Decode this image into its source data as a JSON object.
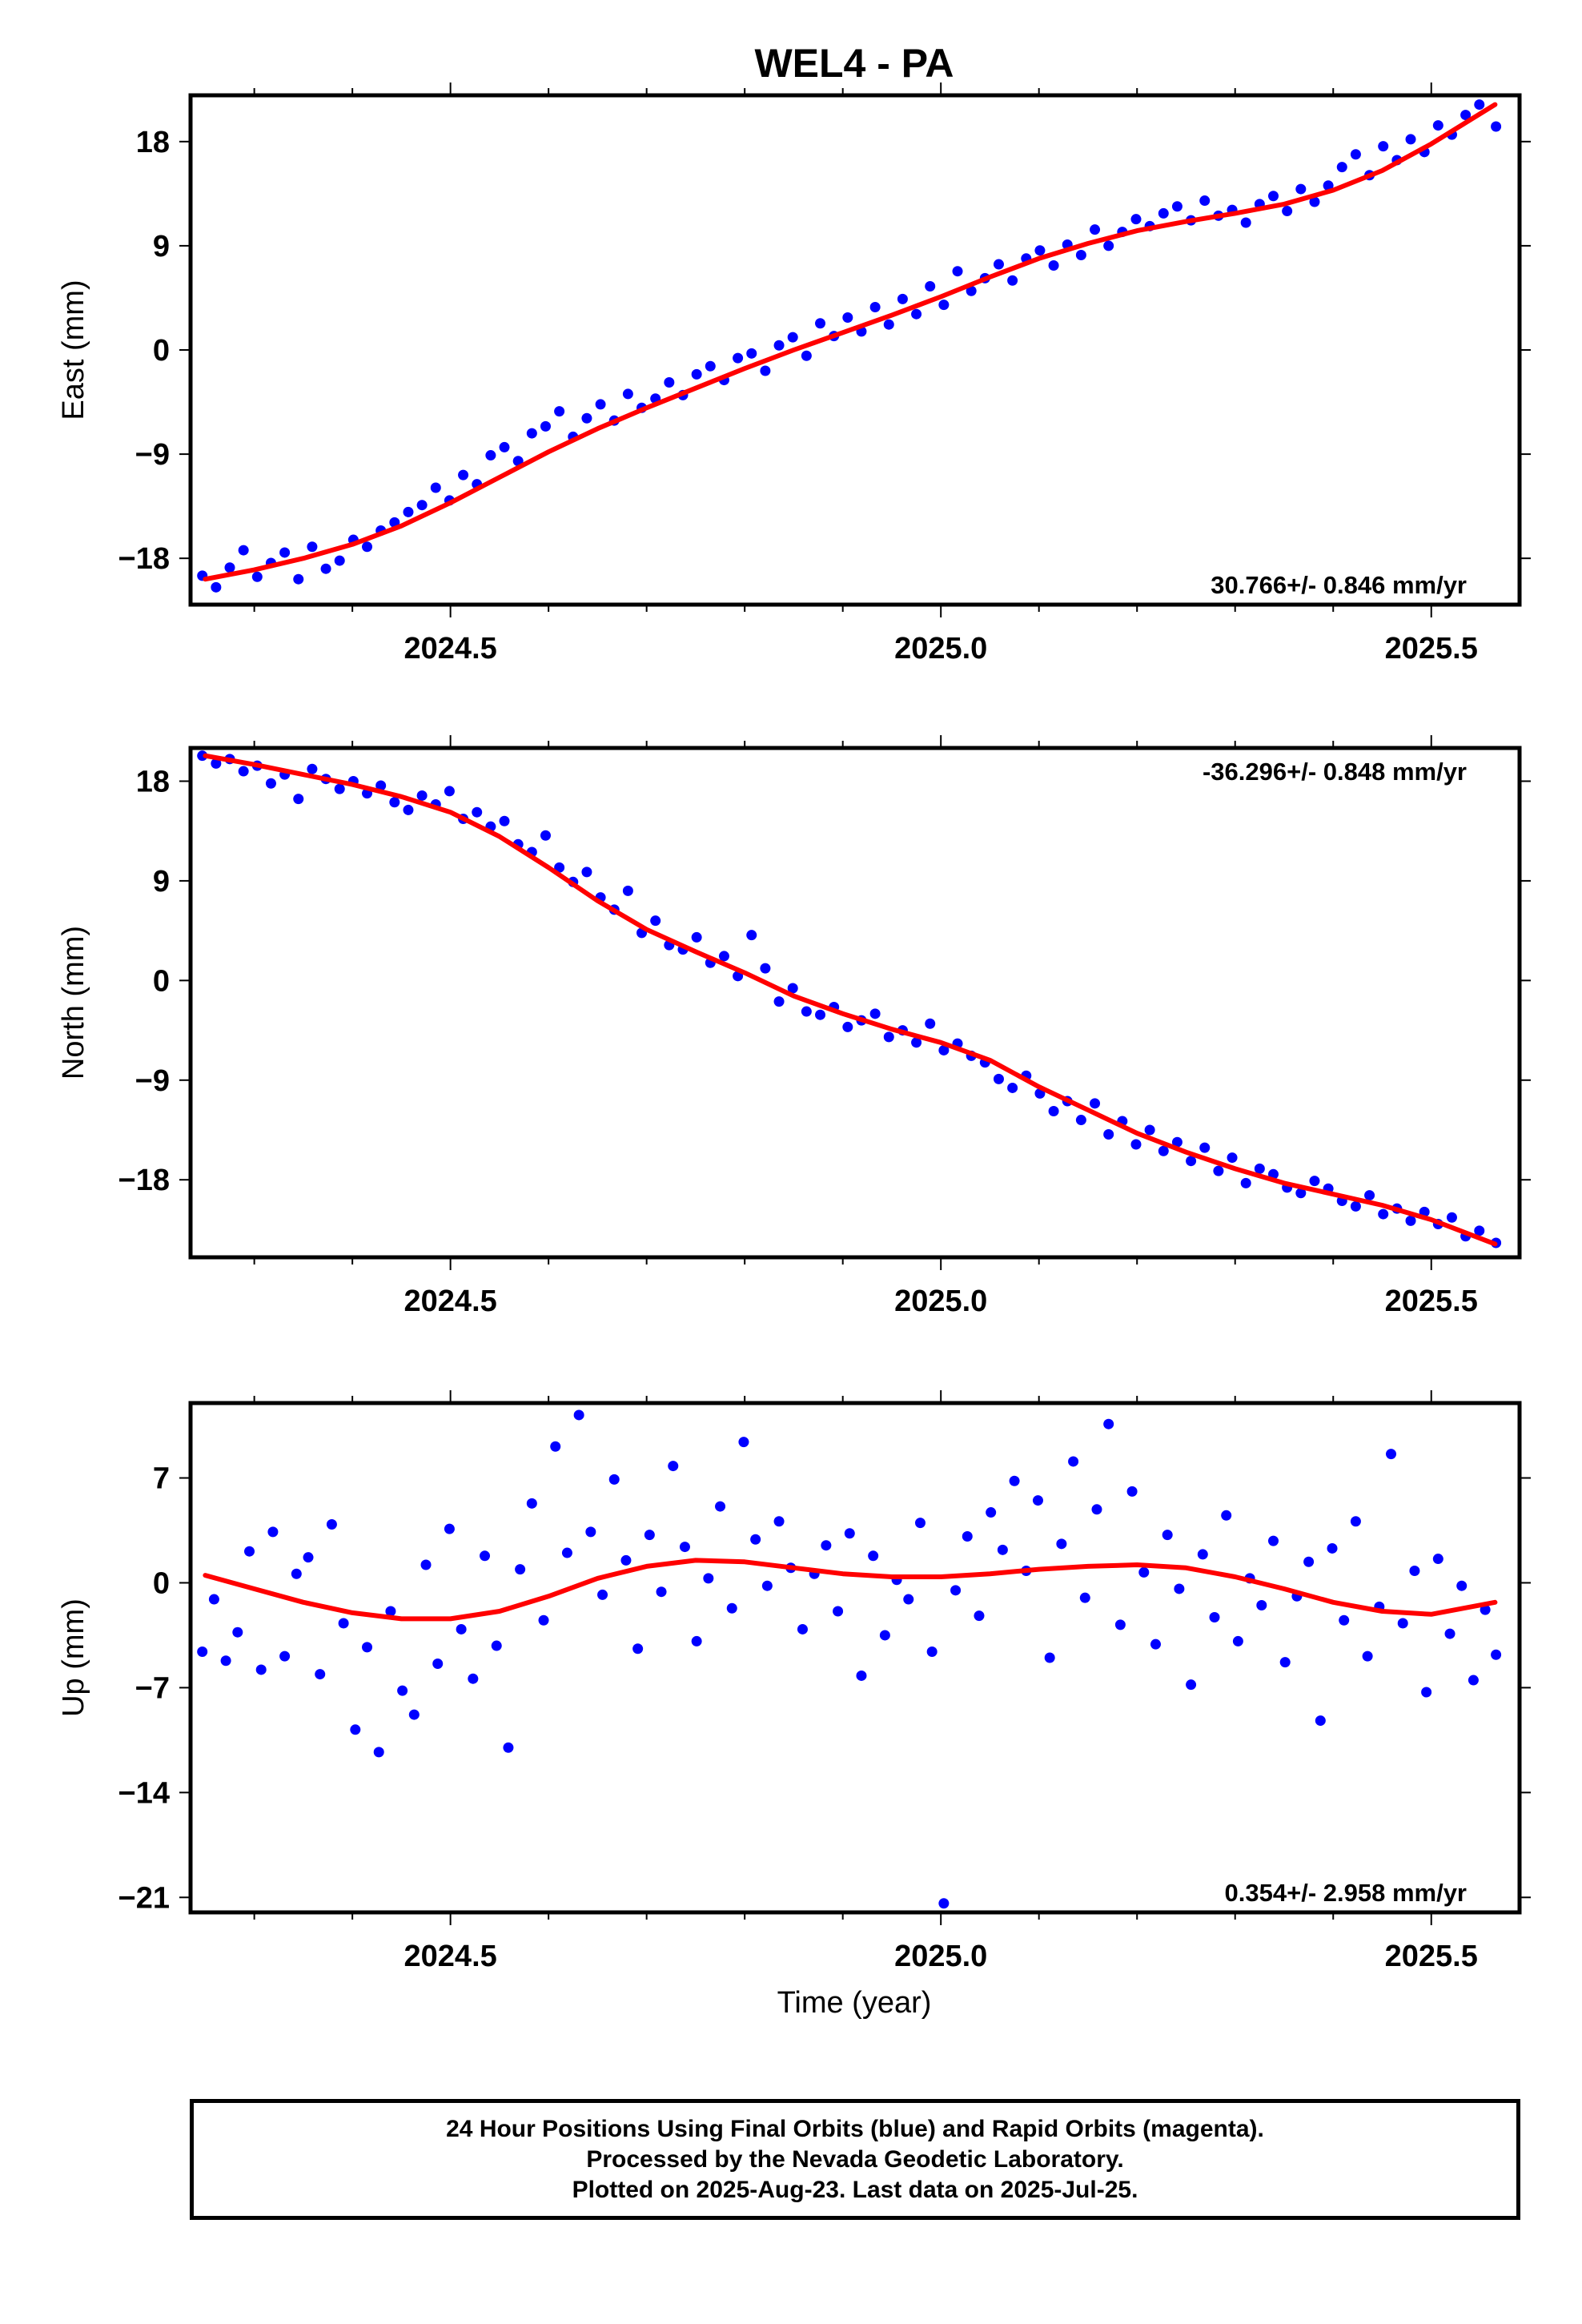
{
  "title": "WEL4 - PA",
  "xlabel": "Time (year)",
  "colors": {
    "points": "#0000ff",
    "fit": "#ff0000",
    "frame": "#000000"
  },
  "footer": {
    "line1": "24 Hour Positions Using Final Orbits (blue) and Rapid Orbits (magenta).",
    "line2": "Processed by the Nevada Geodetic Laboratory.",
    "line3": "Plotted on 2025-Aug-23. Last data on 2025-Jul-25."
  },
  "chart_data": [
    {
      "type": "scatter",
      "key": "east",
      "ylabel": "East (mm)",
      "rate_label": "30.766+/- 0.846 mm/yr",
      "rate_position": "bottom-right",
      "xlim": [
        2024.235,
        2025.59
      ],
      "ylim": [
        -22,
        22
      ],
      "xticks": [
        2024.5,
        2025.0,
        2025.5
      ],
      "xtick_labels": [
        "2024.5",
        "2025.0",
        "2025.5"
      ],
      "xminor": [
        2024.3,
        2024.4,
        2024.6,
        2024.7,
        2024.8,
        2024.9,
        2025.1,
        2025.2,
        2025.3,
        2025.4
      ],
      "yticks": [
        -18,
        -9,
        0,
        9,
        18
      ],
      "ytick_labels": [
        "−18",
        "−9",
        "0",
        "9",
        "18"
      ],
      "fit": {
        "x": [
          2024.25,
          2024.3,
          2024.35,
          2024.4,
          2024.45,
          2024.5,
          2024.55,
          2024.6,
          2024.65,
          2024.7,
          2024.75,
          2024.8,
          2024.85,
          2024.9,
          2024.95,
          2025.0,
          2025.05,
          2025.1,
          2025.15,
          2025.2,
          2025.25,
          2025.3,
          2025.35,
          2025.4,
          2025.45,
          2025.5,
          2025.565
        ],
        "y": [
          -19.8,
          -19.0,
          -18.0,
          -16.8,
          -15.2,
          -13.2,
          -11.0,
          -8.8,
          -6.8,
          -5.0,
          -3.3,
          -1.6,
          0.0,
          1.5,
          3.0,
          4.6,
          6.3,
          7.9,
          9.2,
          10.3,
          11.1,
          11.8,
          12.6,
          13.8,
          15.5,
          17.8,
          21.2
        ]
      },
      "points": {
        "x": [
          2024.247,
          2024.261,
          2024.275,
          2024.289,
          2024.303,
          2024.317,
          2024.331,
          2024.345,
          2024.359,
          2024.373,
          2024.387,
          2024.401,
          2024.415,
          2024.429,
          2024.443,
          2024.457,
          2024.471,
          2024.485,
          2024.499,
          2024.513,
          2024.527,
          2024.541,
          2024.555,
          2024.569,
          2024.583,
          2024.597,
          2024.611,
          2024.625,
          2024.639,
          2024.653,
          2024.667,
          2024.681,
          2024.695,
          2024.709,
          2024.723,
          2024.737,
          2024.751,
          2024.765,
          2024.779,
          2024.793,
          2024.807,
          2024.821,
          2024.835,
          2024.849,
          2024.863,
          2024.877,
          2024.891,
          2024.905,
          2024.919,
          2024.933,
          2024.947,
          2024.961,
          2024.975,
          2024.989,
          2025.003,
          2025.017,
          2025.031,
          2025.045,
          2025.059,
          2025.073,
          2025.087,
          2025.101,
          2025.115,
          2025.129,
          2025.143,
          2025.157,
          2025.171,
          2025.185,
          2025.199,
          2025.213,
          2025.227,
          2025.241,
          2025.255,
          2025.269,
          2025.283,
          2025.297,
          2025.311,
          2025.325,
          2025.339,
          2025.353,
          2025.367,
          2025.381,
          2025.395,
          2025.409,
          2025.423,
          2025.437,
          2025.451,
          2025.465,
          2025.479,
          2025.493,
          2025.507,
          2025.521,
          2025.535,
          2025.549,
          2025.566
        ],
        "y": [
          -19.5,
          -20.5,
          -18.8,
          -17.3,
          -19.6,
          -18.4,
          -17.5,
          -19.8,
          -17.0,
          -18.9,
          -18.2,
          -16.4,
          -17.0,
          -15.6,
          -14.9,
          -14.0,
          -13.4,
          -11.9,
          -13.0,
          -10.8,
          -11.6,
          -9.1,
          -8.4,
          -9.6,
          -7.2,
          -6.6,
          -5.3,
          -7.5,
          -5.9,
          -4.7,
          -6.1,
          -3.8,
          -5.0,
          -4.2,
          -2.8,
          -3.9,
          -2.1,
          -1.4,
          -2.6,
          -0.7,
          -0.3,
          -1.8,
          0.4,
          1.1,
          -0.5,
          2.3,
          1.2,
          2.8,
          1.6,
          3.7,
          2.2,
          4.4,
          3.1,
          5.5,
          3.9,
          6.8,
          5.1,
          6.2,
          7.4,
          6.0,
          7.9,
          8.6,
          7.3,
          9.1,
          8.2,
          10.4,
          9.0,
          10.2,
          11.3,
          10.7,
          11.8,
          12.4,
          11.2,
          12.9,
          11.6,
          12.1,
          11.0,
          12.6,
          13.3,
          12.0,
          13.9,
          12.8,
          14.2,
          15.8,
          16.9,
          15.1,
          17.6,
          16.4,
          18.2,
          17.1,
          19.4,
          18.6,
          20.3,
          21.2,
          19.3
        ]
      }
    },
    {
      "type": "scatter",
      "key": "north",
      "ylabel": "North (mm)",
      "rate_label": "-36.296+/- 0.848 mm/yr",
      "rate_position": "top-right",
      "xlim": [
        2024.235,
        2025.59
      ],
      "ylim": [
        -25,
        21
      ],
      "xticks": [
        2024.5,
        2025.0,
        2025.5
      ],
      "xtick_labels": [
        "2024.5",
        "2025.0",
        "2025.5"
      ],
      "xminor": [
        2024.3,
        2024.4,
        2024.6,
        2024.7,
        2024.8,
        2024.9,
        2025.1,
        2025.2,
        2025.3,
        2025.4
      ],
      "yticks": [
        -18,
        -9,
        0,
        9,
        18
      ],
      "ytick_labels": [
        "−18",
        "−9",
        "0",
        "9",
        "18"
      ],
      "fit": {
        "x": [
          2024.25,
          2024.3,
          2024.35,
          2024.4,
          2024.45,
          2024.5,
          2024.55,
          2024.6,
          2024.65,
          2024.7,
          2024.75,
          2024.8,
          2024.85,
          2024.9,
          2024.95,
          2025.0,
          2025.05,
          2025.1,
          2025.15,
          2025.2,
          2025.25,
          2025.3,
          2025.35,
          2025.4,
          2025.45,
          2025.5,
          2025.565
        ],
        "y": [
          20.3,
          19.5,
          18.6,
          17.7,
          16.6,
          15.2,
          13.0,
          10.2,
          7.2,
          4.6,
          2.6,
          0.7,
          -1.4,
          -3.0,
          -4.4,
          -5.6,
          -7.2,
          -9.6,
          -11.7,
          -13.8,
          -15.5,
          -17.0,
          -18.3,
          -19.3,
          -20.3,
          -21.6,
          -23.8
        ]
      },
      "points": {
        "x": [
          2024.247,
          2024.261,
          2024.275,
          2024.289,
          2024.303,
          2024.317,
          2024.331,
          2024.345,
          2024.359,
          2024.373,
          2024.387,
          2024.401,
          2024.415,
          2024.429,
          2024.443,
          2024.457,
          2024.471,
          2024.485,
          2024.499,
          2024.513,
          2024.527,
          2024.541,
          2024.555,
          2024.569,
          2024.583,
          2024.597,
          2024.611,
          2024.625,
          2024.639,
          2024.653,
          2024.667,
          2024.681,
          2024.695,
          2024.709,
          2024.723,
          2024.737,
          2024.751,
          2024.765,
          2024.779,
          2024.793,
          2024.807,
          2024.821,
          2024.835,
          2024.849,
          2024.863,
          2024.877,
          2024.891,
          2024.905,
          2024.919,
          2024.933,
          2024.947,
          2024.961,
          2024.975,
          2024.989,
          2025.003,
          2025.017,
          2025.031,
          2025.045,
          2025.059,
          2025.073,
          2025.087,
          2025.101,
          2025.115,
          2025.129,
          2025.143,
          2025.157,
          2025.171,
          2025.185,
          2025.199,
          2025.213,
          2025.227,
          2025.241,
          2025.255,
          2025.269,
          2025.283,
          2025.297,
          2025.311,
          2025.325,
          2025.339,
          2025.353,
          2025.367,
          2025.381,
          2025.395,
          2025.409,
          2025.423,
          2025.437,
          2025.451,
          2025.465,
          2025.479,
          2025.493,
          2025.507,
          2025.521,
          2025.535,
          2025.549,
          2025.566
        ],
        "y": [
          20.3,
          19.6,
          20.0,
          18.9,
          19.4,
          17.8,
          18.6,
          16.4,
          19.1,
          18.2,
          17.3,
          18.0,
          16.9,
          17.6,
          16.1,
          15.4,
          16.7,
          15.9,
          17.1,
          14.6,
          15.2,
          13.9,
          14.4,
          12.3,
          11.6,
          13.1,
          10.2,
          8.9,
          9.8,
          7.5,
          6.4,
          8.1,
          4.3,
          5.4,
          3.2,
          2.8,
          3.9,
          1.6,
          2.2,
          0.4,
          4.1,
          1.1,
          -1.9,
          -0.7,
          -2.8,
          -3.1,
          -2.4,
          -4.2,
          -3.6,
          -3.0,
          -5.1,
          -4.5,
          -5.6,
          -3.9,
          -6.3,
          -5.7,
          -6.8,
          -7.4,
          -8.9,
          -9.7,
          -8.6,
          -10.2,
          -11.8,
          -10.9,
          -12.6,
          -11.1,
          -13.9,
          -12.7,
          -14.8,
          -13.5,
          -15.4,
          -14.6,
          -16.3,
          -15.1,
          -17.2,
          -16.0,
          -18.3,
          -17.0,
          -17.5,
          -18.7,
          -19.2,
          -18.1,
          -18.8,
          -19.9,
          -20.4,
          -19.4,
          -21.1,
          -20.6,
          -21.7,
          -20.9,
          -22.0,
          -21.4,
          -23.1,
          -22.6,
          -23.7
        ]
      }
    },
    {
      "type": "scatter",
      "key": "up",
      "ylabel": "Up (mm)",
      "rate_label": "0.354+/- 2.958 mm/yr",
      "rate_position": "bottom-right",
      "xlim": [
        2024.235,
        2025.59
      ],
      "ylim": [
        -22,
        12
      ],
      "xticks": [
        2024.5,
        2025.0,
        2025.5
      ],
      "xtick_labels": [
        "2024.5",
        "2025.0",
        "2025.5"
      ],
      "xminor": [
        2024.3,
        2024.4,
        2024.6,
        2024.7,
        2024.8,
        2024.9,
        2025.1,
        2025.2,
        2025.3,
        2025.4
      ],
      "yticks": [
        -21,
        -14,
        -7,
        0,
        7
      ],
      "ytick_labels": [
        "−21",
        "−14",
        "−7",
        "0",
        "7"
      ],
      "fit": {
        "x": [
          2024.25,
          2024.3,
          2024.35,
          2024.4,
          2024.45,
          2024.5,
          2024.55,
          2024.6,
          2024.65,
          2024.7,
          2024.75,
          2024.8,
          2024.85,
          2024.9,
          2024.95,
          2025.0,
          2025.05,
          2025.1,
          2025.15,
          2025.2,
          2025.25,
          2025.3,
          2025.35,
          2025.4,
          2025.45,
          2025.5,
          2025.565
        ],
        "y": [
          0.5,
          -0.4,
          -1.3,
          -2.0,
          -2.4,
          -2.4,
          -1.9,
          -0.9,
          0.3,
          1.1,
          1.5,
          1.4,
          1.0,
          0.6,
          0.4,
          0.4,
          0.6,
          0.9,
          1.1,
          1.2,
          1.0,
          0.4,
          -0.4,
          -1.3,
          -1.9,
          -2.1,
          -1.3
        ]
      },
      "points": {
        "x": [
          2024.247,
          2024.259,
          2024.271,
          2024.283,
          2024.295,
          2024.307,
          2024.319,
          2024.331,
          2024.343,
          2024.355,
          2024.367,
          2024.379,
          2024.391,
          2024.403,
          2024.415,
          2024.427,
          2024.439,
          2024.451,
          2024.463,
          2024.475,
          2024.487,
          2024.499,
          2024.511,
          2024.523,
          2024.535,
          2024.547,
          2024.559,
          2024.571,
          2024.583,
          2024.595,
          2024.607,
          2024.619,
          2024.631,
          2024.643,
          2024.655,
          2024.667,
          2024.679,
          2024.691,
          2024.703,
          2024.715,
          2024.727,
          2024.739,
          2024.751,
          2024.763,
          2024.775,
          2024.787,
          2024.799,
          2024.811,
          2024.823,
          2024.835,
          2024.847,
          2024.859,
          2024.871,
          2024.883,
          2024.895,
          2024.907,
          2024.919,
          2024.931,
          2024.943,
          2024.955,
          2024.967,
          2024.979,
          2024.991,
          2025.003,
          2025.015,
          2025.027,
          2025.039,
          2025.051,
          2025.063,
          2025.075,
          2025.087,
          2025.099,
          2025.111,
          2025.123,
          2025.135,
          2025.147,
          2025.159,
          2025.171,
          2025.183,
          2025.195,
          2025.207,
          2025.219,
          2025.231,
          2025.243,
          2025.255,
          2025.267,
          2025.279,
          2025.291,
          2025.303,
          2025.315,
          2025.327,
          2025.339,
          2025.351,
          2025.363,
          2025.375,
          2025.387,
          2025.399,
          2025.411,
          2025.423,
          2025.435,
          2025.447,
          2025.459,
          2025.471,
          2025.483,
          2025.495,
          2025.507,
          2025.519,
          2025.531,
          2025.543,
          2025.555,
          2025.566
        ],
        "y": [
          -4.6,
          -1.1,
          -5.2,
          -3.3,
          2.1,
          -5.8,
          3.4,
          -4.9,
          0.6,
          1.7,
          -6.1,
          3.9,
          -2.7,
          -9.8,
          -4.3,
          -11.3,
          -1.9,
          -7.2,
          -8.8,
          1.2,
          -5.4,
          3.6,
          -3.1,
          -6.4,
          1.8,
          -4.2,
          -11.0,
          0.9,
          5.3,
          -2.5,
          9.1,
          2.0,
          11.2,
          3.4,
          -0.8,
          6.9,
          1.5,
          -4.4,
          3.2,
          -0.6,
          7.8,
          2.4,
          -3.9,
          0.3,
          5.1,
          -1.7,
          9.4,
          2.9,
          -0.2,
          4.1,
          1.0,
          -3.1,
          0.6,
          2.5,
          -1.9,
          3.3,
          -6.2,
          1.8,
          -3.5,
          0.2,
          -1.1,
          4.0,
          -4.6,
          -21.4,
          -0.5,
          3.1,
          -2.2,
          4.7,
          2.2,
          6.8,
          0.8,
          5.5,
          -5.0,
          2.6,
          8.1,
          -1.0,
          4.9,
          10.6,
          -2.8,
          6.1,
          0.7,
          -4.1,
          3.2,
          -0.4,
          -6.8,
          1.9,
          -2.3,
          4.5,
          -3.9,
          0.3,
          -1.5,
          2.8,
          -5.3,
          -0.9,
          1.4,
          -9.2,
          2.3,
          -2.5,
          4.1,
          -4.9,
          -1.6,
          8.6,
          -2.7,
          0.8,
          -7.3,
          1.6,
          -3.4,
          -0.2,
          -6.5,
          -1.8,
          -4.8
        ]
      }
    }
  ]
}
